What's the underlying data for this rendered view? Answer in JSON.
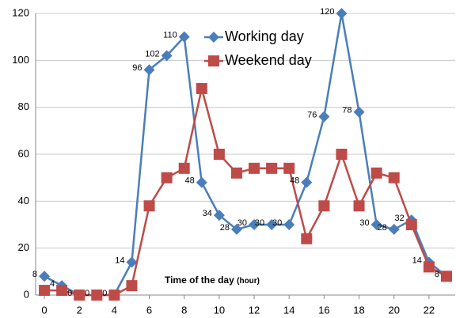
{
  "chart_data": {
    "type": "line",
    "x": [
      0,
      1,
      2,
      3,
      4,
      5,
      6,
      7,
      8,
      9,
      10,
      11,
      12,
      13,
      14,
      15,
      16,
      17,
      18,
      19,
      20,
      21,
      22,
      23
    ],
    "series": [
      {
        "name": "Working day",
        "color": "#4a7ebb",
        "marker": "diamond",
        "values": [
          8,
          4,
          0,
          0,
          0,
          14,
          96,
          102,
          110,
          48,
          34,
          28,
          30,
          30,
          30,
          48,
          76,
          120,
          78,
          30,
          28,
          32,
          14,
          8
        ]
      },
      {
        "name": "Weekend day",
        "color": "#be4b48",
        "marker": "square",
        "values": [
          2,
          2,
          0,
          0,
          0,
          4,
          38,
          50,
          54,
          88,
          60,
          52,
          54,
          54,
          54,
          24,
          38,
          60,
          38,
          52,
          50,
          30,
          12,
          8
        ]
      }
    ],
    "xlabel": "Time of the day",
    "xlabel_unit": "(hour)",
    "xlim": [
      -0.5,
      23.5
    ],
    "xticks": [
      0,
      2,
      4,
      6,
      8,
      10,
      12,
      14,
      16,
      18,
      20,
      22
    ],
    "ylim": [
      0,
      120
    ],
    "yticks": [
      0,
      20,
      40,
      60,
      80,
      100,
      120
    ],
    "grid": true,
    "legend": "top"
  }
}
